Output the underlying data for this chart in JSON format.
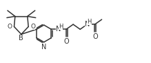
{
  "background_color": "#ffffff",
  "line_color": "#333333",
  "line_width": 1.1,
  "font_size": 6.5,
  "fig_width": 2.19,
  "fig_height": 0.91,
  "dpi": 100,
  "xlim": [
    0,
    10.5
  ],
  "ylim": [
    0,
    4.5
  ]
}
